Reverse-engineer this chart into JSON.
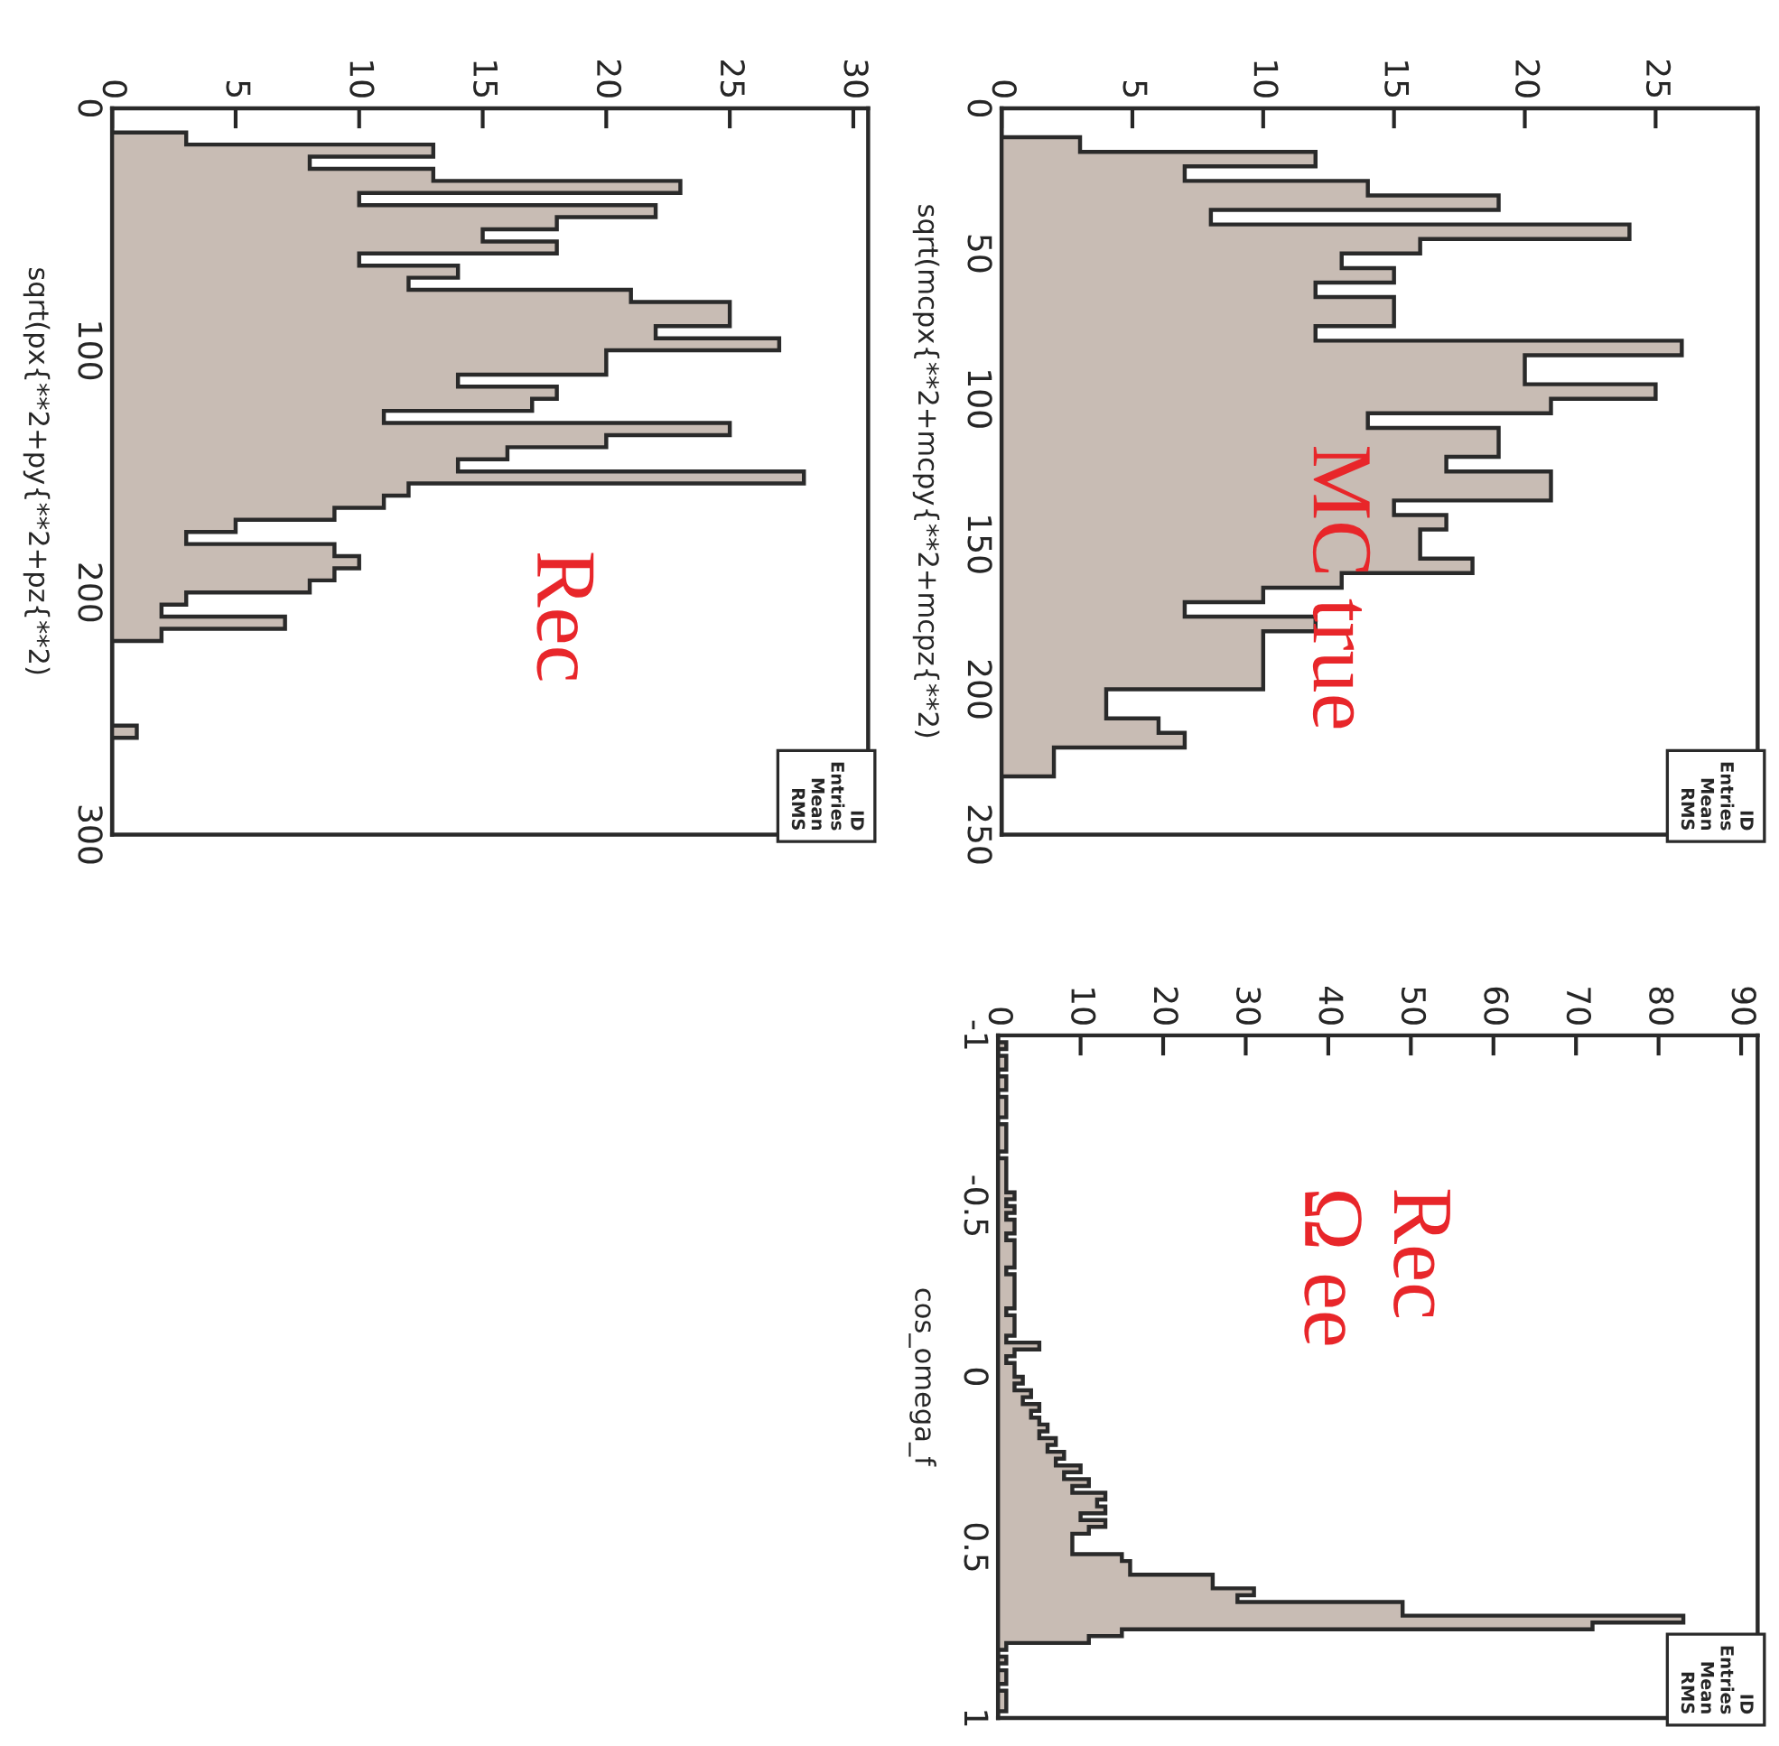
{
  "chart_data": [
    {
      "type": "histogram",
      "orientation": "horizontal",
      "ylabel": "sqrt(px{**2+py{**2+pz{**2)",
      "color": "#c8bcb4",
      "bins": [
        0,
        5,
        10,
        15,
        20,
        25,
        30,
        35,
        40,
        45,
        50,
        55,
        60,
        65,
        70,
        75,
        80,
        85,
        90,
        95,
        100,
        105,
        110,
        115,
        120,
        125,
        130,
        135,
        140,
        145,
        150,
        155,
        160,
        165,
        170,
        175,
        180,
        185,
        190,
        195,
        200,
        205,
        210,
        215,
        220,
        225,
        230,
        235,
        240,
        245,
        250,
        255,
        260,
        265,
        270,
        275,
        280,
        285,
        290,
        295,
        300
      ],
      "values": [
        0,
        0,
        3,
        13,
        8,
        13,
        23,
        10,
        22,
        18,
        15,
        18,
        10,
        14,
        12,
        21,
        25,
        25,
        22,
        27,
        20,
        20,
        14,
        18,
        17,
        11,
        25,
        20,
        16,
        14,
        28,
        12,
        11,
        9,
        5,
        3,
        9,
        10,
        9,
        8,
        3,
        2,
        7,
        2,
        0,
        0,
        0,
        0,
        0,
        0,
        0,
        1,
        0,
        0,
        0,
        0,
        0,
        0,
        0,
        0
      ],
      "xlim": [
        0,
        30.6
      ],
      "xticks": [
        0,
        5,
        10,
        15,
        20,
        25,
        30
      ],
      "ylim": [
        300,
        0
      ],
      "yticks": [
        0,
        100,
        200,
        300
      ],
      "annotations": [
        "Rec",
        "ID\nEntries\nMean\nRMS"
      ]
    },
    {
      "type": "histogram",
      "orientation": "horizontal",
      "ylabel": "sqrt(mcpx{**2+mcpy{**2+mcpz{**2)",
      "color": "#c8bcb4",
      "bins": [
        0,
        5,
        10,
        15,
        20,
        25,
        30,
        35,
        40,
        45,
        50,
        55,
        60,
        65,
        70,
        75,
        80,
        85,
        90,
        95,
        100,
        105,
        110,
        115,
        120,
        125,
        130,
        135,
        140,
        145,
        150,
        155,
        160,
        165,
        170,
        175,
        180,
        185,
        190,
        195,
        200,
        205,
        210,
        215,
        220,
        225,
        230,
        235,
        240,
        245,
        250
      ],
      "values": [
        0,
        0,
        3,
        12,
        7,
        14,
        19,
        8,
        24,
        16,
        13,
        15,
        12,
        15,
        15,
        12,
        26,
        20,
        20,
        25,
        21,
        14,
        19,
        19,
        17,
        21,
        21,
        15,
        17,
        16,
        16,
        18,
        13,
        10,
        7,
        12,
        10,
        10,
        10,
        10,
        4,
        4,
        6,
        7,
        2,
        2,
        0,
        0,
        0,
        0
      ],
      "xlim": [
        0,
        28.9
      ],
      "xticks": [
        0,
        5,
        10,
        15,
        20,
        25
      ],
      "ylim": [
        250,
        0
      ],
      "yticks": [
        0,
        50,
        100,
        150,
        200,
        250
      ],
      "annotations": [
        "MC true",
        "ID\nEntries\nMean\nRMS"
      ]
    },
    {
      "type": "histogram",
      "orientation": "horizontal",
      "ylabel": "cos_omega_f",
      "color": "#c8bcb4",
      "bins": [
        -1,
        -0.98,
        -0.96,
        -0.94,
        -0.92,
        -0.9,
        -0.88,
        -0.86,
        -0.84,
        -0.82,
        -0.8,
        -0.78,
        -0.76,
        -0.74,
        -0.72,
        -0.7,
        -0.68,
        -0.66,
        -0.64,
        -0.62,
        -0.6,
        -0.58,
        -0.56,
        -0.54,
        -0.52,
        -0.5,
        -0.48,
        -0.46,
        -0.44,
        -0.42,
        -0.4,
        -0.38,
        -0.36,
        -0.34,
        -0.32,
        -0.3,
        -0.28,
        -0.26,
        -0.24,
        -0.22,
        -0.2,
        -0.18,
        -0.16,
        -0.14,
        -0.12,
        -0.1,
        -0.08,
        -0.06,
        -0.04,
        -0.02,
        0,
        0.02,
        0.04,
        0.06,
        0.08,
        0.1,
        0.12,
        0.14,
        0.16,
        0.18,
        0.2,
        0.22,
        0.24,
        0.26,
        0.28,
        0.3,
        0.32,
        0.34,
        0.36,
        0.38,
        0.4,
        0.42,
        0.44,
        0.46,
        0.48,
        0.5,
        0.52,
        0.54,
        0.56,
        0.58,
        0.6,
        0.62,
        0.64,
        0.66,
        0.68,
        0.7,
        0.72,
        0.74,
        0.76,
        0.78,
        0.8,
        0.82,
        0.84,
        0.86,
        0.88,
        0.9,
        0.92,
        0.94,
        0.96,
        0.98,
        1
      ],
      "values": [
        0,
        1,
        0,
        1,
        1,
        0,
        1,
        1,
        0,
        1,
        1,
        1,
        0,
        1,
        1,
        1,
        1,
        0,
        1,
        1,
        1,
        1,
        1,
        2,
        1,
        2,
        1,
        2,
        2,
        1,
        2,
        2,
        2,
        2,
        1,
        2,
        2,
        2,
        2,
        2,
        1,
        2,
        2,
        2,
        1,
        5,
        2,
        1,
        2,
        2,
        3,
        2,
        4,
        3,
        5,
        4,
        5,
        6,
        5,
        7,
        6,
        8,
        7,
        10,
        8,
        11,
        9,
        13,
        12,
        13,
        10,
        13,
        11,
        9,
        9,
        9,
        15,
        16,
        16,
        26,
        26,
        31,
        29,
        49,
        49,
        83,
        72,
        15,
        11,
        1,
        0,
        1,
        0,
        1,
        1,
        0,
        1,
        1,
        1,
        0
      ],
      "xlim": [
        0,
        92
      ],
      "xticks": [
        0,
        10,
        20,
        30,
        40,
        50,
        60,
        70,
        80,
        90
      ],
      "ylim": [
        1,
        -1
      ],
      "yticks": [
        -1,
        -0.5,
        0,
        0.5,
        1
      ],
      "annotations": [
        "Rec\nΩ ee",
        "ID\nEntries\nMean\nRMS"
      ]
    }
  ]
}
